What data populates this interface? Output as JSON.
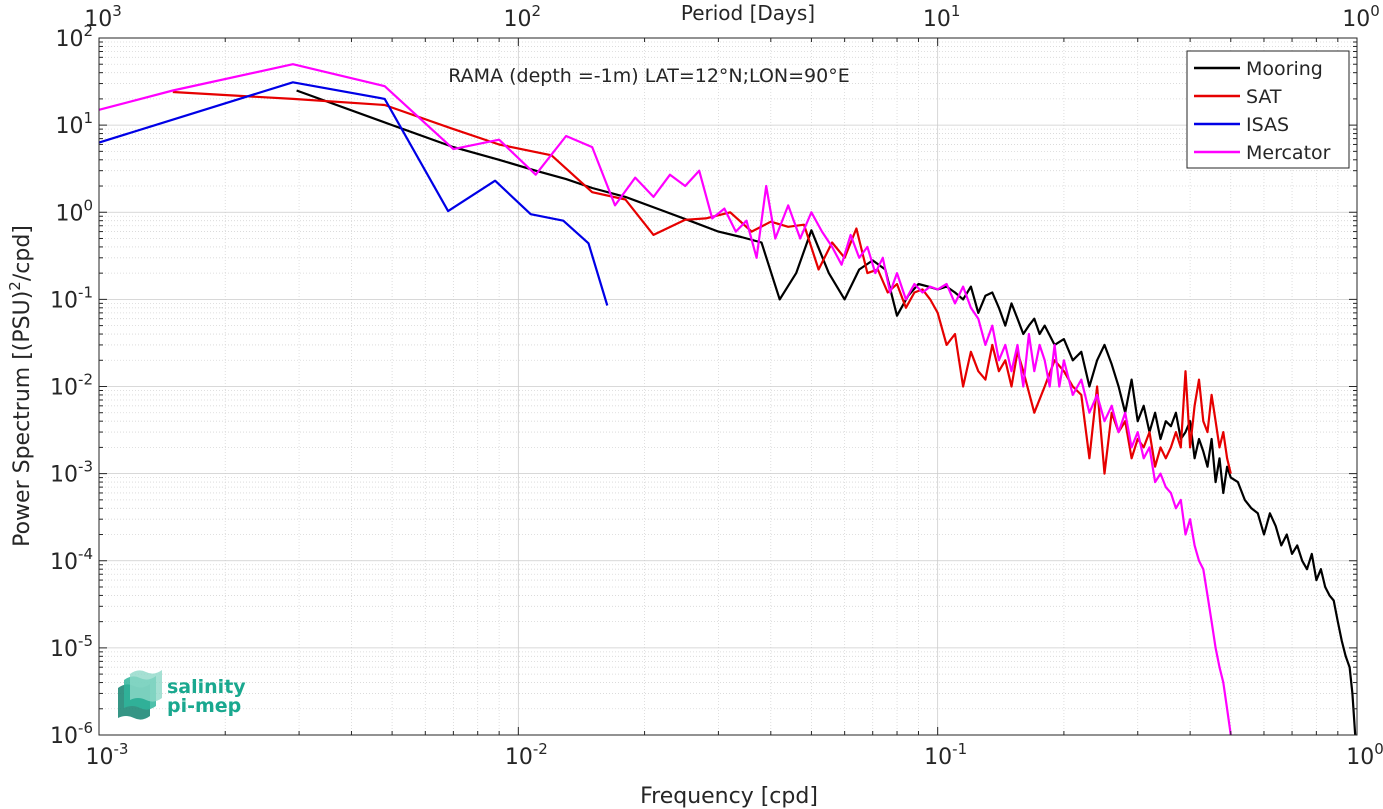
{
  "chart_data": {
    "type": "line",
    "title": "RAMA (depth =-1m) LAT=12°N;LON=90°E",
    "xlabel": "Frequency [cpd]",
    "ylabel": "Power Spectrum [(PSU)²/cpd]",
    "ylabel_parts": {
      "pre": "Power Spectrum [(PSU)",
      "sup": "2",
      "post": "/cpd]"
    },
    "top_axis_label": "Period [Days]",
    "x_scale": "log",
    "y_scale": "log",
    "xlim": [
      0.001,
      1
    ],
    "ylim": [
      1e-06,
      100
    ],
    "grid": true,
    "legend_position": "top-right",
    "x_ticks": [
      {
        "value": 0.001,
        "base": "10",
        "exp": "-3"
      },
      {
        "value": 0.01,
        "base": "10",
        "exp": "-2"
      },
      {
        "value": 0.1,
        "base": "10",
        "exp": "-1"
      },
      {
        "value": 1,
        "base": "10",
        "exp": "0"
      }
    ],
    "top_ticks": [
      {
        "value": 0.001,
        "base": "10",
        "exp": "3"
      },
      {
        "value": 0.01,
        "base": "10",
        "exp": "2"
      },
      {
        "value": 0.1,
        "base": "10",
        "exp": "1"
      },
      {
        "value": 1,
        "base": "10",
        "exp": "0"
      }
    ],
    "y_ticks": [
      {
        "value": 100,
        "base": "10",
        "exp": "2"
      },
      {
        "value": 10,
        "base": "10",
        "exp": "1"
      },
      {
        "value": 1,
        "base": "10",
        "exp": "0"
      },
      {
        "value": 0.1,
        "base": "10",
        "exp": "-1"
      },
      {
        "value": 0.01,
        "base": "10",
        "exp": "-2"
      },
      {
        "value": 0.001,
        "base": "10",
        "exp": "-3"
      },
      {
        "value": 0.0001,
        "base": "10",
        "exp": "-4"
      },
      {
        "value": 1e-05,
        "base": "10",
        "exp": "-5"
      },
      {
        "value": 1e-06,
        "base": "10",
        "exp": "-6"
      }
    ],
    "series": [
      {
        "name": "Mooring",
        "color": "#000000",
        "x": [
          0.00296,
          0.005,
          0.007,
          0.009,
          0.011,
          0.013,
          0.015,
          0.018,
          0.022,
          0.026,
          0.03,
          0.034,
          0.038,
          0.042,
          0.046,
          0.05,
          0.055,
          0.06,
          0.065,
          0.07,
          0.075,
          0.08,
          0.085,
          0.09,
          0.095,
          0.1,
          0.105,
          0.11,
          0.115,
          0.12,
          0.125,
          0.13,
          0.135,
          0.14,
          0.145,
          0.15,
          0.155,
          0.16,
          0.165,
          0.17,
          0.175,
          0.18,
          0.19,
          0.2,
          0.21,
          0.22,
          0.23,
          0.24,
          0.25,
          0.26,
          0.27,
          0.28,
          0.29,
          0.3,
          0.31,
          0.32,
          0.33,
          0.34,
          0.35,
          0.36,
          0.37,
          0.38,
          0.39,
          0.4,
          0.41,
          0.42,
          0.43,
          0.44,
          0.45,
          0.46,
          0.47,
          0.48,
          0.49,
          0.5,
          0.52,
          0.54,
          0.56,
          0.58,
          0.6,
          0.62,
          0.64,
          0.66,
          0.68,
          0.7,
          0.72,
          0.74,
          0.76,
          0.78,
          0.8,
          0.82,
          0.84,
          0.86,
          0.88,
          0.9,
          0.92,
          0.94,
          0.96,
          0.975,
          0.99
        ],
        "y": [
          25,
          10,
          5.6,
          4,
          3,
          2.4,
          1.9,
          1.5,
          1.05,
          0.78,
          0.6,
          0.52,
          0.45,
          0.1,
          0.2,
          0.62,
          0.2,
          0.1,
          0.22,
          0.28,
          0.22,
          0.065,
          0.11,
          0.15,
          0.14,
          0.13,
          0.14,
          0.12,
          0.1,
          0.14,
          0.07,
          0.11,
          0.12,
          0.08,
          0.05,
          0.09,
          0.06,
          0.04,
          0.05,
          0.06,
          0.04,
          0.05,
          0.03,
          0.035,
          0.02,
          0.025,
          0.01,
          0.02,
          0.03,
          0.018,
          0.01,
          0.005,
          0.012,
          0.004,
          0.006,
          0.003,
          0.005,
          0.0025,
          0.004,
          0.0035,
          0.005,
          0.0025,
          0.003,
          0.004,
          0.0015,
          0.0025,
          0.0018,
          0.0012,
          0.0025,
          0.0008,
          0.0015,
          0.0006,
          0.0012,
          0.0009,
          0.0008,
          0.0005,
          0.0004,
          0.00035,
          0.0002,
          0.00035,
          0.00025,
          0.00015,
          0.0002,
          0.00012,
          0.00015,
          0.0001,
          8e-05,
          0.00012,
          6e-05,
          8e-05,
          5e-05,
          4e-05,
          3.5e-05,
          2e-05,
          1.2e-05,
          8e-06,
          6e-06,
          3e-06,
          1e-06
        ]
      },
      {
        "name": "SAT",
        "color": "#e60000",
        "x": [
          0.0015,
          0.0029,
          0.0048,
          0.007,
          0.009,
          0.012,
          0.015,
          0.018,
          0.021,
          0.025,
          0.028,
          0.032,
          0.036,
          0.04,
          0.044,
          0.048,
          0.052,
          0.056,
          0.06,
          0.064,
          0.068,
          0.072,
          0.076,
          0.08,
          0.084,
          0.088,
          0.092,
          0.096,
          0.1,
          0.105,
          0.11,
          0.115,
          0.12,
          0.125,
          0.13,
          0.135,
          0.14,
          0.145,
          0.15,
          0.155,
          0.16,
          0.17,
          0.18,
          0.19,
          0.2,
          0.21,
          0.22,
          0.23,
          0.24,
          0.25,
          0.26,
          0.27,
          0.28,
          0.29,
          0.3,
          0.31,
          0.32,
          0.33,
          0.34,
          0.35,
          0.36,
          0.37,
          0.38,
          0.39,
          0.4,
          0.41,
          0.42,
          0.43,
          0.44,
          0.45,
          0.46,
          0.47,
          0.48,
          0.49,
          0.5
        ],
        "y": [
          24,
          20,
          17,
          9,
          6,
          4.5,
          1.7,
          1.4,
          0.55,
          0.82,
          0.85,
          1.0,
          0.6,
          0.78,
          0.68,
          0.72,
          0.22,
          0.45,
          0.3,
          0.65,
          0.2,
          0.22,
          0.12,
          0.15,
          0.08,
          0.12,
          0.13,
          0.1,
          0.07,
          0.03,
          0.04,
          0.01,
          0.025,
          0.015,
          0.012,
          0.03,
          0.015,
          0.02,
          0.01,
          0.025,
          0.015,
          0.005,
          0.01,
          0.02,
          0.015,
          0.01,
          0.008,
          0.0015,
          0.01,
          0.001,
          0.005,
          0.003,
          0.004,
          0.0015,
          0.0025,
          0.002,
          0.003,
          0.0012,
          0.002,
          0.0015,
          0.002,
          0.003,
          0.002,
          0.015,
          0.002,
          0.006,
          0.012,
          0.004,
          0.003,
          0.008,
          0.004,
          0.002,
          0.003,
          0.0015,
          0.001
        ]
      },
      {
        "name": "ISAS",
        "color": "#0000e6",
        "x": [
          0.001,
          0.0029,
          0.0048,
          0.0068,
          0.0088,
          0.0107,
          0.0128,
          0.0147,
          0.0163
        ],
        "y": [
          6.3,
          31,
          20,
          1.03,
          2.3,
          0.95,
          0.8,
          0.44,
          0.085
        ]
      },
      {
        "name": "Mercator",
        "color": "#ff00ff",
        "x": [
          0.001,
          0.0015,
          0.0029,
          0.0048,
          0.007,
          0.009,
          0.011,
          0.013,
          0.015,
          0.017,
          0.019,
          0.021,
          0.023,
          0.025,
          0.027,
          0.029,
          0.031,
          0.033,
          0.035,
          0.037,
          0.039,
          0.041,
          0.044,
          0.047,
          0.05,
          0.053,
          0.056,
          0.059,
          0.062,
          0.065,
          0.068,
          0.071,
          0.074,
          0.077,
          0.08,
          0.084,
          0.088,
          0.092,
          0.096,
          0.1,
          0.105,
          0.11,
          0.115,
          0.12,
          0.125,
          0.13,
          0.135,
          0.14,
          0.145,
          0.15,
          0.155,
          0.16,
          0.165,
          0.17,
          0.175,
          0.18,
          0.185,
          0.19,
          0.195,
          0.2,
          0.21,
          0.22,
          0.23,
          0.24,
          0.25,
          0.26,
          0.27,
          0.28,
          0.29,
          0.3,
          0.31,
          0.32,
          0.33,
          0.34,
          0.35,
          0.36,
          0.37,
          0.38,
          0.39,
          0.4,
          0.41,
          0.42,
          0.43,
          0.44,
          0.45,
          0.46,
          0.47,
          0.48,
          0.49,
          0.5
        ],
        "y": [
          15,
          25,
          50,
          28,
          5.3,
          6.8,
          2.7,
          7.5,
          5.6,
          1.2,
          2.5,
          1.5,
          2.7,
          2.0,
          3.0,
          0.85,
          1.1,
          0.6,
          0.8,
          0.3,
          2.0,
          0.5,
          1.2,
          0.5,
          1.0,
          0.6,
          0.4,
          0.25,
          0.55,
          0.3,
          0.4,
          0.2,
          0.3,
          0.12,
          0.2,
          0.1,
          0.15,
          0.12,
          0.14,
          0.13,
          0.15,
          0.09,
          0.14,
          0.08,
          0.06,
          0.03,
          0.05,
          0.02,
          0.03,
          0.015,
          0.03,
          0.01,
          0.04,
          0.015,
          0.03,
          0.02,
          0.01,
          0.03,
          0.01,
          0.02,
          0.008,
          0.012,
          0.005,
          0.008,
          0.004,
          0.006,
          0.003,
          0.005,
          0.002,
          0.003,
          0.0015,
          0.002,
          0.0008,
          0.001,
          0.0007,
          0.0006,
          0.0004,
          0.0005,
          0.0002,
          0.0003,
          0.00015,
          0.0001,
          8e-05,
          4e-05,
          2e-05,
          1e-05,
          6e-06,
          4e-06,
          2e-06,
          1e-06
        ]
      }
    ]
  },
  "logo": {
    "line1": "salinity",
    "line2": "pi-mep",
    "color": "#1aa88f"
  }
}
